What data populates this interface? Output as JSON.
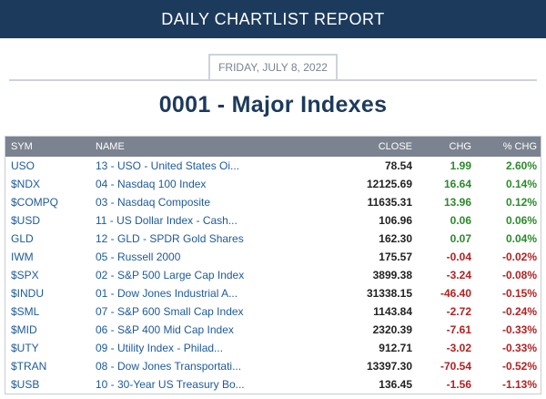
{
  "header": {
    "title": "DAILY CHARTLIST REPORT"
  },
  "report": {
    "date": "FRIDAY, JULY 8, 2022",
    "title": "0001 - Major Indexes"
  },
  "table": {
    "columns": {
      "sym": "SYM",
      "name": "NAME",
      "close": "CLOSE",
      "chg": "CHG",
      "pct": "% CHG"
    },
    "colors": {
      "positive": "#2b8a2b",
      "negative": "#b32121"
    },
    "rows": [
      {
        "sym": "USO",
        "name": "13 - USO - United States Oi...",
        "close": "78.54",
        "chg": "1.99",
        "pct": "2.60%",
        "dir": "pos"
      },
      {
        "sym": "$NDX",
        "name": "04 - Nasdaq 100 Index",
        "close": "12125.69",
        "chg": "16.64",
        "pct": "0.14%",
        "dir": "pos"
      },
      {
        "sym": "$COMPQ",
        "name": "03 - Nasdaq Composite",
        "close": "11635.31",
        "chg": "13.96",
        "pct": "0.12%",
        "dir": "pos"
      },
      {
        "sym": "$USD",
        "name": "11 - US Dollar Index - Cash...",
        "close": "106.96",
        "chg": "0.06",
        "pct": "0.06%",
        "dir": "pos"
      },
      {
        "sym": "GLD",
        "name": "12 - GLD - SPDR Gold Shares",
        "close": "162.30",
        "chg": "0.07",
        "pct": "0.04%",
        "dir": "pos"
      },
      {
        "sym": "IWM",
        "name": "05 - Russell 2000",
        "close": "175.57",
        "chg": "-0.04",
        "pct": "-0.02%",
        "dir": "neg"
      },
      {
        "sym": "$SPX",
        "name": "02 - S&P 500 Large Cap Index",
        "close": "3899.38",
        "chg": "-3.24",
        "pct": "-0.08%",
        "dir": "neg"
      },
      {
        "sym": "$INDU",
        "name": "01 - Dow Jones Industrial A...",
        "close": "31338.15",
        "chg": "-46.40",
        "pct": "-0.15%",
        "dir": "neg"
      },
      {
        "sym": "$SML",
        "name": "07 - S&P 600 Small Cap Index",
        "close": "1143.84",
        "chg": "-2.72",
        "pct": "-0.24%",
        "dir": "neg"
      },
      {
        "sym": "$MID",
        "name": "06 - S&P 400 Mid Cap Index",
        "close": "2320.39",
        "chg": "-7.61",
        "pct": "-0.33%",
        "dir": "neg"
      },
      {
        "sym": "$UTY",
        "name": "09 - Utility Index - Philad...",
        "close": "912.71",
        "chg": "-3.02",
        "pct": "-0.33%",
        "dir": "neg"
      },
      {
        "sym": "$TRAN",
        "name": "08 - Dow Jones Transportati...",
        "close": "13397.30",
        "chg": "-70.54",
        "pct": "-0.52%",
        "dir": "neg"
      },
      {
        "sym": "$USB",
        "name": "10 - 30-Year US Treasury Bo...",
        "close": "136.45",
        "chg": "-1.56",
        "pct": "-1.13%",
        "dir": "neg"
      }
    ]
  }
}
